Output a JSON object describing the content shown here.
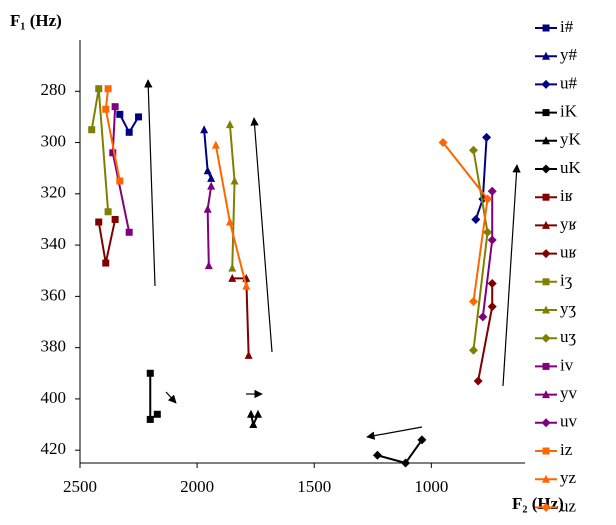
{
  "chart_data": {
    "type": "scatter-line",
    "x_label": "F₂ (Hz)",
    "y_label": "F₁ (Hz)",
    "xlim": [
      2500,
      600
    ],
    "xticks": [
      2500,
      2000,
      1500,
      1000
    ],
    "ylim": [
      260,
      425
    ],
    "y_inverted": true,
    "yticks": [
      280,
      300,
      320,
      340,
      360,
      380,
      400,
      420
    ],
    "legend": "right",
    "series": [
      {
        "name": "i#",
        "color": "#000080",
        "marker": "square",
        "x": [
          2330,
          2290,
          2250
        ],
        "values": [
          289,
          296,
          290
        ]
      },
      {
        "name": "y#",
        "color": "#000080",
        "marker": "triangle",
        "x": [
          1970,
          1955,
          1940
        ],
        "values": [
          295,
          311,
          314
        ]
      },
      {
        "name": "u#",
        "color": "#000080",
        "marker": "diamond",
        "x": [
          764,
          780,
          810
        ],
        "values": [
          298,
          322,
          330
        ]
      },
      {
        "name": "iK",
        "color": "#000000",
        "marker": "square",
        "x": [
          2200,
          2200,
          2170
        ],
        "values": [
          390,
          408,
          406
        ]
      },
      {
        "name": "yK",
        "color": "#000000",
        "marker": "triangle",
        "x": [
          1770,
          1760,
          1740
        ],
        "values": [
          406,
          410,
          406
        ]
      },
      {
        "name": "uK",
        "color": "#000000",
        "marker": "diamond",
        "x": [
          1230,
          1110,
          1040
        ],
        "values": [
          422,
          425,
          416
        ]
      },
      {
        "name": "iʁ",
        "color": "#800000",
        "marker": "square",
        "x": [
          2420,
          2390,
          2350
        ],
        "values": [
          331,
          347,
          330
        ]
      },
      {
        "name": "yʁ",
        "color": "#800000",
        "marker": "triangle",
        "x": [
          1850,
          1790,
          1780
        ],
        "values": [
          353,
          353,
          383
        ]
      },
      {
        "name": "uʁ",
        "color": "#800000",
        "marker": "diamond",
        "x": [
          800,
          740,
          740
        ],
        "values": [
          393,
          364,
          355
        ]
      },
      {
        "name": "iʒ",
        "color": "#808000",
        "marker": "square",
        "x": [
          2450,
          2420,
          2380
        ],
        "values": [
          295,
          279,
          327
        ]
      },
      {
        "name": "yʒ",
        "color": "#808000",
        "marker": "triangle",
        "x": [
          1860,
          1840,
          1850
        ],
        "values": [
          293,
          315,
          349
        ]
      },
      {
        "name": "uʒ",
        "color": "#808000",
        "marker": "diamond",
        "x": [
          820,
          760,
          820
        ],
        "values": [
          303,
          335,
          381
        ]
      },
      {
        "name": "iv",
        "color": "#800080",
        "marker": "square",
        "x": [
          2350,
          2360,
          2290
        ],
        "values": [
          286,
          304,
          335
        ]
      },
      {
        "name": "yv",
        "color": "#800080",
        "marker": "triangle",
        "x": [
          1940,
          1955,
          1950
        ],
        "values": [
          317,
          326,
          348
        ]
      },
      {
        "name": "uv",
        "color": "#800080",
        "marker": "diamond",
        "x": [
          780,
          740,
          740
        ],
        "values": [
          368,
          338,
          319
        ]
      },
      {
        "name": "iz",
        "color": "#ff6600",
        "marker": "square",
        "x": [
          2380,
          2390,
          2330
        ],
        "values": [
          279,
          287,
          315
        ]
      },
      {
        "name": "yz",
        "color": "#ff6600",
        "marker": "triangle",
        "x": [
          1920,
          1860,
          1790
        ],
        "values": [
          301,
          331,
          356
        ]
      },
      {
        "name": "uz",
        "color": "#ff6600",
        "marker": "diamond",
        "x": [
          950,
          760,
          820
        ],
        "values": [
          300,
          322,
          362
        ]
      }
    ]
  }
}
